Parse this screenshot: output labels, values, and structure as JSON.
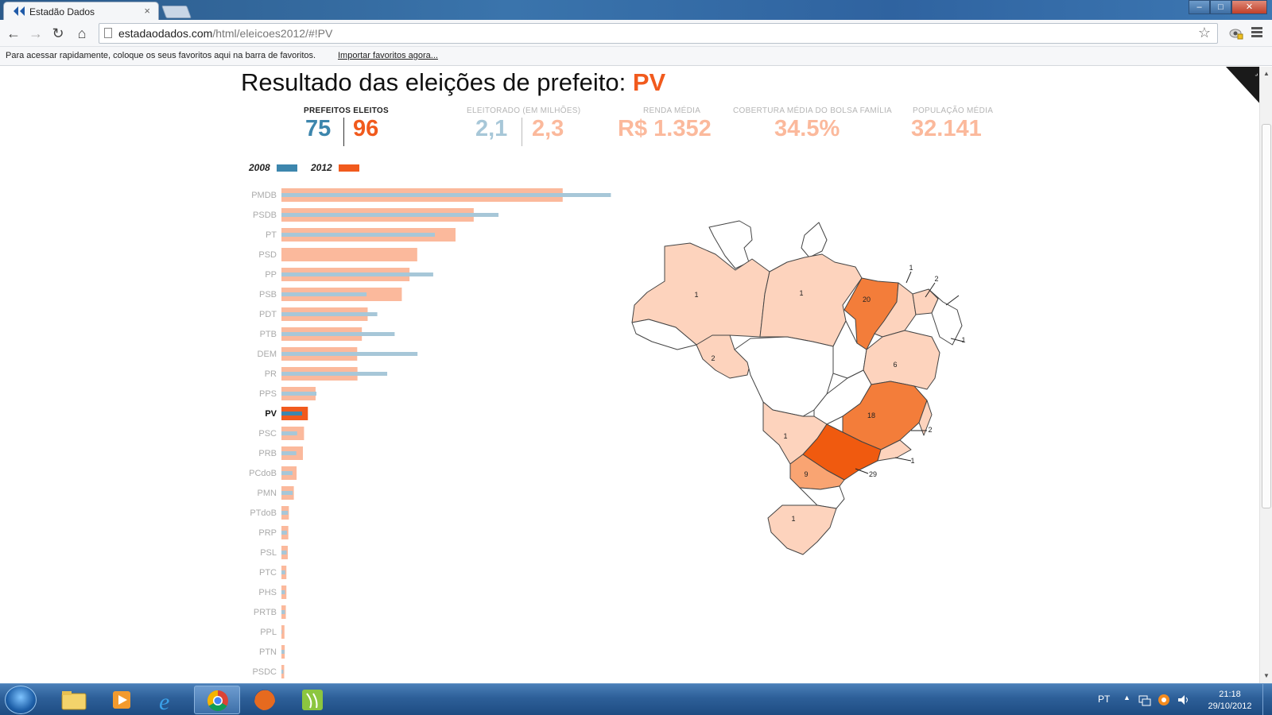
{
  "browser": {
    "tab_title": "Estadão Dados",
    "tab_close": "×",
    "url_domain": "estadaodados.com",
    "url_path": "/html/eleicoes2012/#!PV",
    "bookmarks_text": "Para acessar rapidamente, coloque os seus favoritos aqui na barra de favoritos.",
    "bookmarks_link": "Importar favoritos agora..."
  },
  "page": {
    "headline_prefix": "Resultado das eleições de prefeito: ",
    "headline_party": "PV",
    "stats": {
      "prefeitos_label": "PREFEITOS ELEITOS",
      "prefeitos_2008": "75",
      "prefeitos_2012": "96",
      "eleitorado_label": "ELEITORADO (EM MILHÕES)",
      "eleitorado_2008": "2,1",
      "eleitorado_2012": "2,3",
      "renda_label": "RENDA MÉDIA",
      "renda_value": "R$ 1.352",
      "bolsa_label": "COBERTURA MÉDIA DO BOLSA FAMÍLIA",
      "bolsa_value": "34.5%",
      "populacao_label": "POPULAÇÃO MÉDIA",
      "populacao_value": "32.141"
    },
    "legend": {
      "year_2008": "2008",
      "year_2012": "2012"
    }
  },
  "colors": {
    "blue_2008": "#3d86ad",
    "orange_2012": "#f15a1d",
    "light_blue": "#a7c7d8",
    "light_orange": "#fbb99c",
    "map_light": "#fdd3bd",
    "map_mid": "#f9a472",
    "map_strong": "#f37d3a",
    "map_darkest": "#f05a0f"
  },
  "chart_data": {
    "type": "bar",
    "selected": "PV",
    "categories": [
      "PMDB",
      "PSDB",
      "PT",
      "PSD",
      "PP",
      "PSB",
      "PDT",
      "PTB",
      "DEM",
      "PR",
      "PPS",
      "PV",
      "PSC",
      "PRB",
      "PCdoB",
      "PMN",
      "PTdoB",
      "PRP",
      "PSL",
      "PTC",
      "PHS",
      "PRTB",
      "PPL",
      "PTN",
      "PSDC"
    ],
    "series": [
      {
        "name": "2008",
        "values": [
          1196,
          788,
          557,
          0,
          551,
          309,
          348,
          411,
          494,
          384,
          127,
          75,
          57,
          54,
          40,
          41,
          24,
          20,
          19,
          14,
          13,
          13,
          2,
          11,
          7
        ]
      },
      {
        "name": "2012",
        "values": [
          1021,
          698,
          632,
          493,
          465,
          437,
          313,
          292,
          275,
          276,
          124,
          96,
          82,
          78,
          55,
          45,
          27,
          25,
          23,
          18,
          18,
          16,
          11,
          12,
          10
        ]
      }
    ]
  },
  "map_data": {
    "label_values": [
      "1",
      "1",
      "20",
      "1",
      "2",
      "2",
      "1",
      "6",
      "18",
      "2",
      "1",
      "1",
      "9",
      "29",
      "1"
    ]
  }
}
